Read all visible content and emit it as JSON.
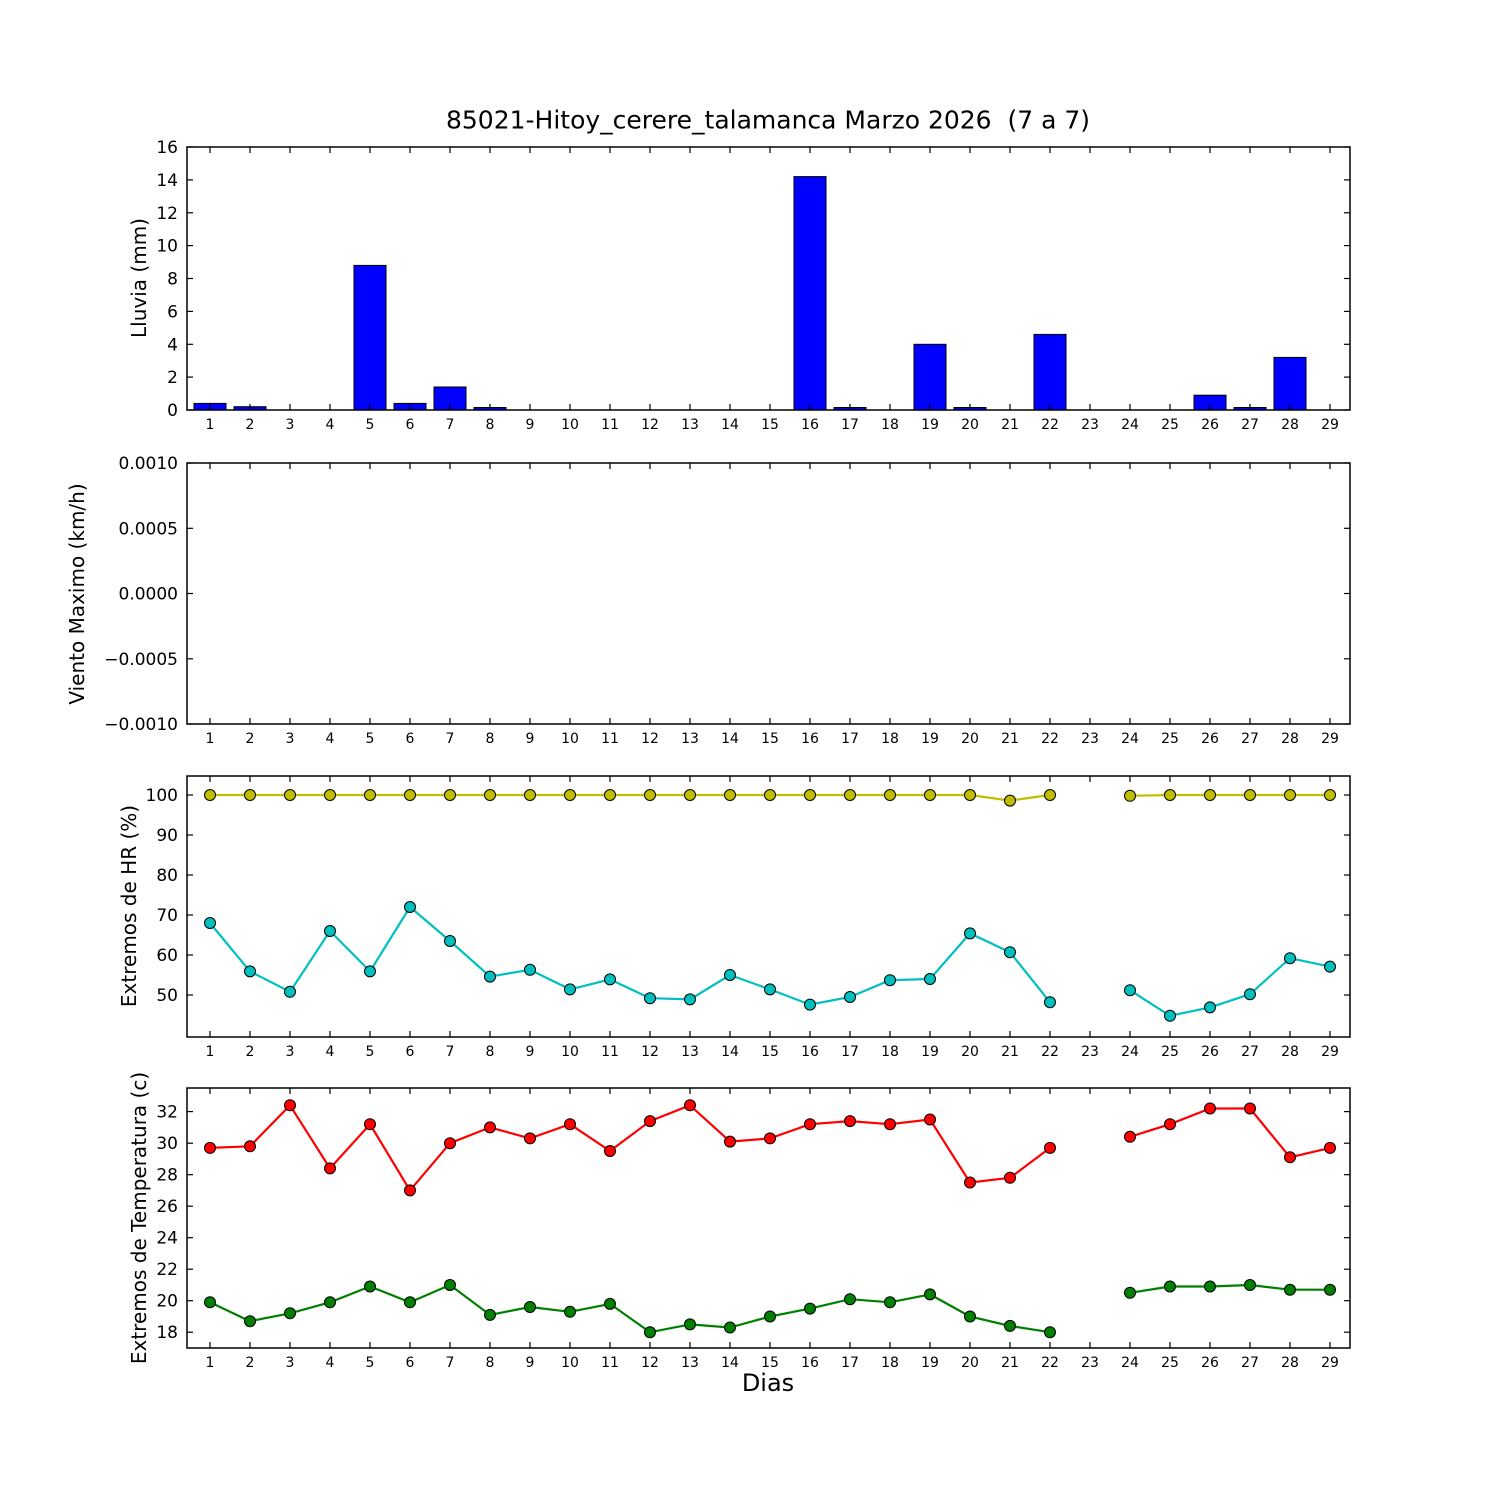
{
  "title": "85021-Hitoy_cerere_talamanca Marzo 2026  (7 a 7)",
  "xlabel": "Dias",
  "days": [
    1,
    2,
    3,
    4,
    5,
    6,
    7,
    8,
    9,
    10,
    11,
    12,
    13,
    14,
    15,
    16,
    17,
    18,
    19,
    20,
    21,
    22,
    23,
    24,
    25,
    26,
    27,
    28,
    29
  ],
  "colors": {
    "bar": "#0000ff",
    "hr_max": "#bfbf00",
    "hr_min": "#00bfbf",
    "temp_max": "#ff0000",
    "temp_min": "#008000",
    "axis": "#000000"
  },
  "chart_data": [
    {
      "type": "bar",
      "ylabel": "Lluvia (mm)",
      "values": [
        0.4,
        0.2,
        0,
        0,
        8.8,
        0.4,
        1.4,
        0.15,
        0,
        0,
        0,
        0,
        0,
        0,
        0,
        14.2,
        0.15,
        0,
        4.0,
        0.15,
        0,
        4.6,
        0,
        0,
        0,
        0.9,
        0.15,
        3.2,
        0
      ],
      "ylim": [
        0,
        16
      ],
      "yticks": [
        0,
        2,
        4,
        6,
        8,
        10,
        12,
        14,
        16
      ],
      "bar_color": "#0000ff"
    },
    {
      "type": "line",
      "ylabel": "Viento Maximo (km/h)",
      "series": [],
      "ylim": [
        -0.001,
        0.001
      ],
      "yticks": [
        0.001,
        0.0005,
        0,
        -0.0005,
        -0.001
      ],
      "ytick_labels": [
        "0.0010",
        "0.0005",
        "0.0000",
        "−0.0005",
        "−0.0010"
      ]
    },
    {
      "type": "line",
      "ylabel": "Extremos de HR (%)",
      "series": [
        {
          "name": "max",
          "color": "#bfbf00",
          "values": [
            100,
            100,
            100,
            100,
            100,
            100,
            100,
            100,
            100,
            100,
            100,
            100,
            100,
            100,
            100,
            100,
            100,
            100,
            100,
            100,
            98.6,
            100,
            null,
            99.8,
            100,
            100,
            100,
            100,
            100
          ]
        },
        {
          "name": "min",
          "color": "#00bfbf",
          "values": [
            68,
            55.9,
            50.8,
            66,
            55.9,
            72,
            63.5,
            54.6,
            56.3,
            51.4,
            53.9,
            49.2,
            48.9,
            55,
            51.4,
            47.6,
            49.5,
            53.7,
            54,
            65.4,
            60.7,
            48.2,
            null,
            51.2,
            44.8,
            46.9,
            50.2,
            59.2,
            57.1
          ]
        }
      ],
      "ylim": [
        39.5,
        104.75
      ],
      "yticks": [
        50,
        60,
        70,
        80,
        90,
        100
      ]
    },
    {
      "type": "line",
      "ylabel": "Extremos de Temperatura (c)",
      "series": [
        {
          "name": "max",
          "color": "#ff0000",
          "values": [
            29.7,
            29.8,
            32.4,
            28.4,
            31.2,
            27,
            30,
            31,
            30.3,
            31.2,
            29.5,
            31.4,
            32.4,
            30.1,
            30.3,
            31.2,
            31.4,
            31.2,
            31.5,
            27.5,
            27.8,
            29.7,
            null,
            30.4,
            31.2,
            32.2,
            32.2,
            29.1,
            29.7
          ]
        },
        {
          "name": "min",
          "color": "#008000",
          "values": [
            19.9,
            18.7,
            19.2,
            19.9,
            20.9,
            19.9,
            21,
            19.1,
            19.6,
            19.3,
            19.8,
            18,
            18.5,
            18.3,
            19,
            19.5,
            20.1,
            19.9,
            20.4,
            19,
            18.4,
            18,
            null,
            20.5,
            20.9,
            20.9,
            21,
            20.7,
            20.7
          ]
        }
      ],
      "ylim": [
        17,
        33.5
      ],
      "yticks": [
        18,
        20,
        22,
        24,
        26,
        28,
        30,
        32
      ]
    }
  ]
}
